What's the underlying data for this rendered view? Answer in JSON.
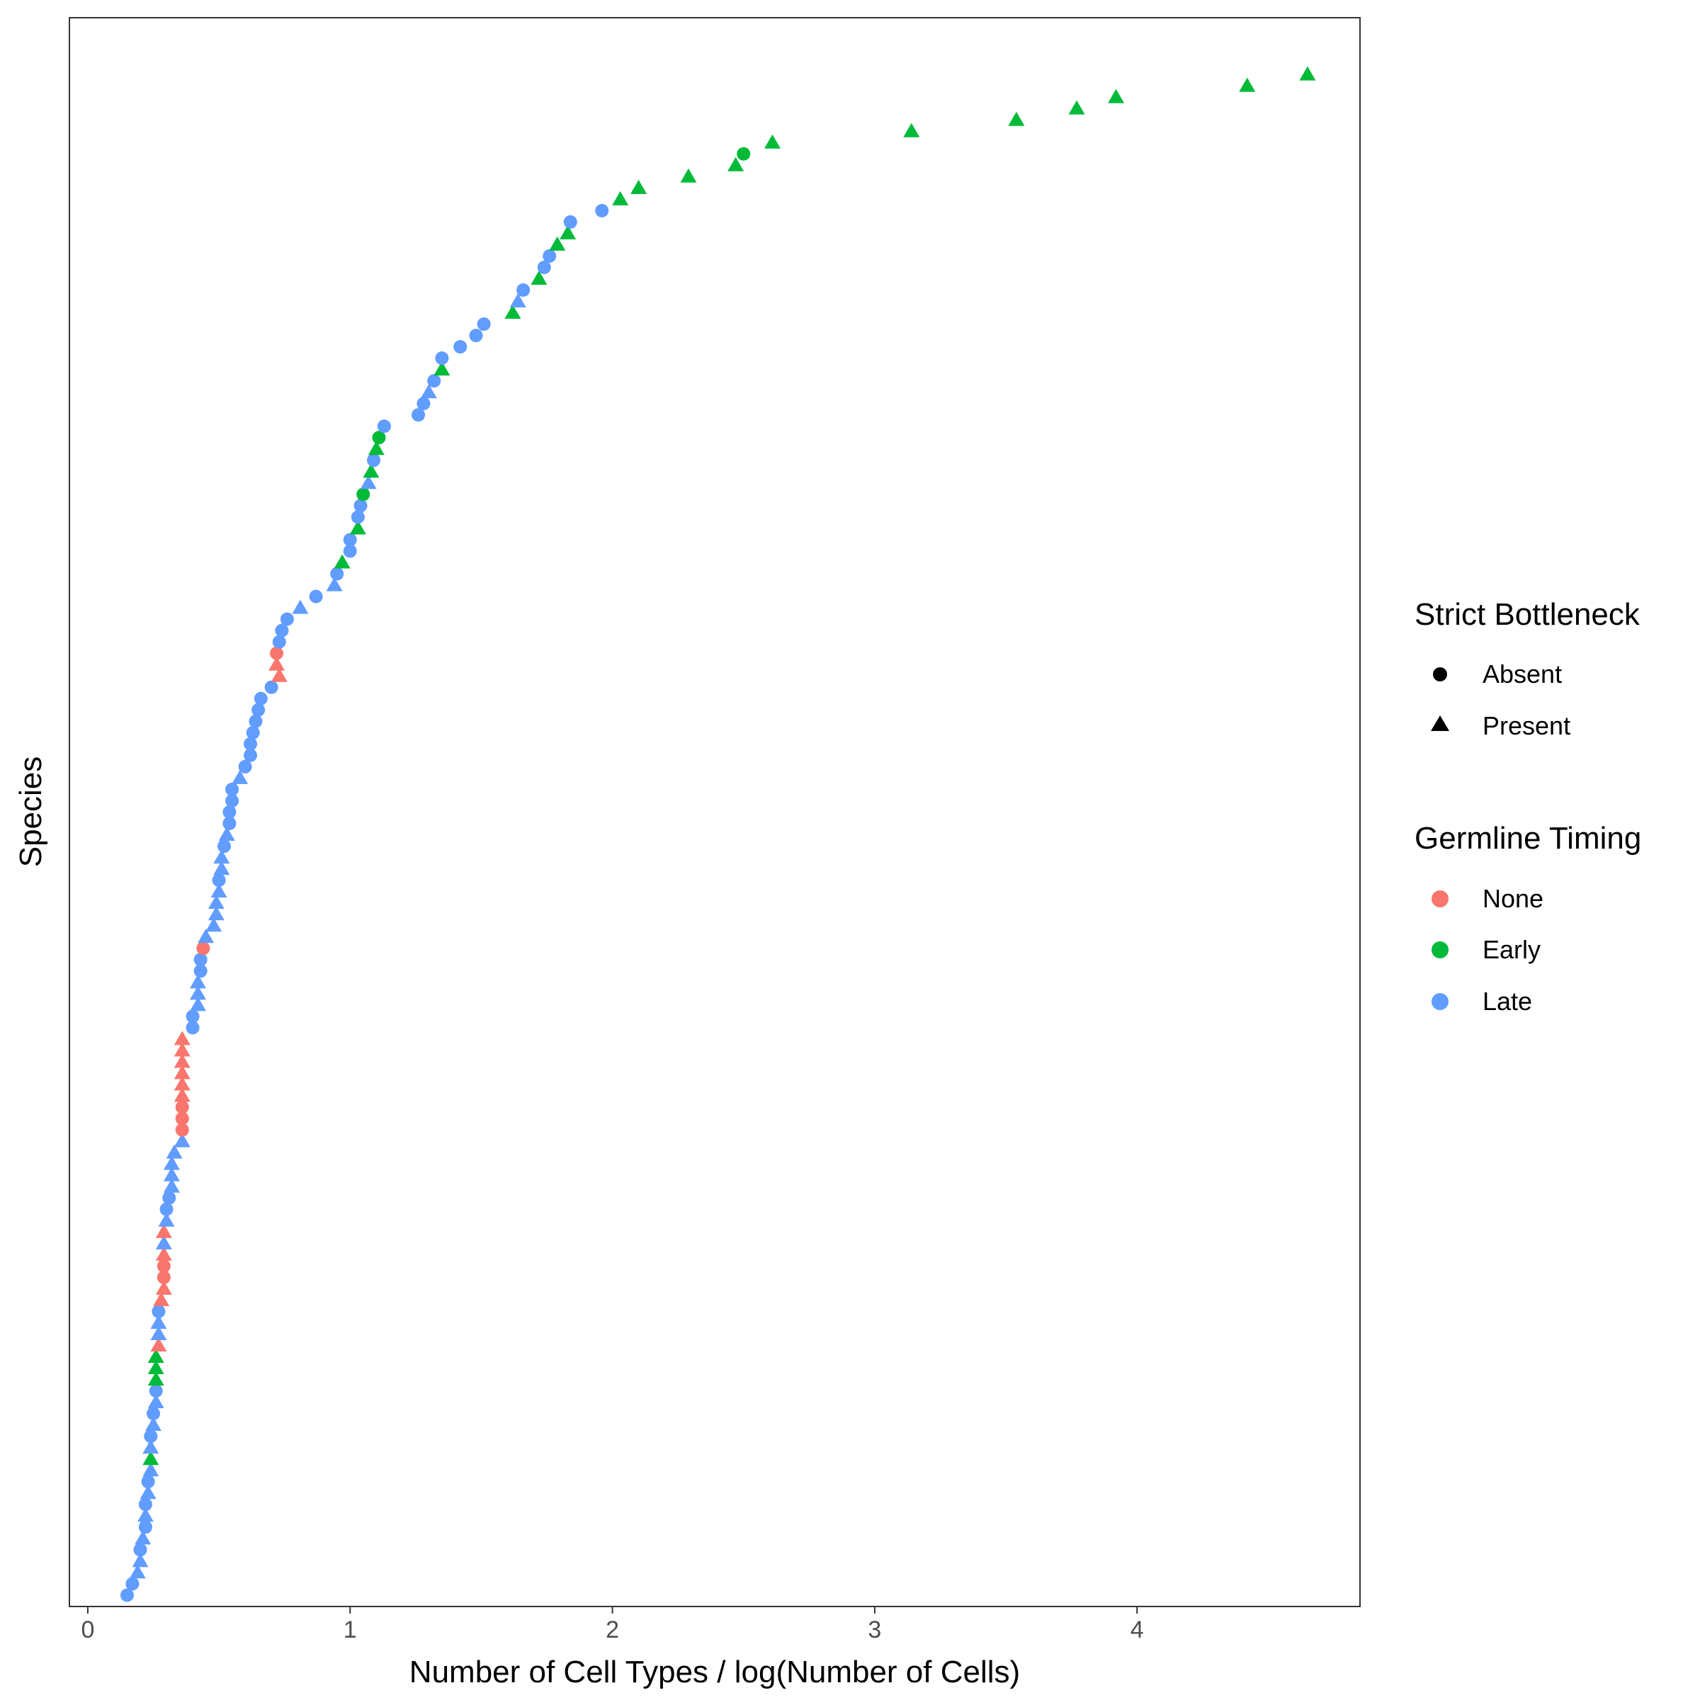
{
  "chart_data": {
    "type": "scatter",
    "xlabel": "Number of Cell Types / log(Number of Cells)",
    "ylabel": "Species",
    "xlim": [
      -0.07,
      4.85
    ],
    "ylim": [
      0,
      140
    ],
    "x_ticks": [
      "0",
      "1",
      "2",
      "3",
      "4"
    ],
    "grid": false,
    "legend_position": "right",
    "colors": {
      "None": "#F8766D",
      "Early": "#00BA38",
      "Late": "#619CFF"
    },
    "legends": [
      {
        "title": "Strict Bottleneck",
        "items": [
          {
            "label": "Absent",
            "shape": "circle"
          },
          {
            "label": "Present",
            "shape": "triangle"
          }
        ]
      },
      {
        "title": "Germline Timing",
        "items": [
          {
            "label": "None",
            "color": "#F8766D"
          },
          {
            "label": "Early",
            "color": "#00BA38"
          },
          {
            "label": "Late",
            "color": "#619CFF"
          }
        ]
      }
    ],
    "points": [
      {
        "x": 0.15,
        "rank": 1,
        "bottleneck": "Absent",
        "timing": "Late"
      },
      {
        "x": 0.17,
        "rank": 2,
        "bottleneck": "Absent",
        "timing": "Late"
      },
      {
        "x": 0.19,
        "rank": 3,
        "bottleneck": "Present",
        "timing": "Late"
      },
      {
        "x": 0.2,
        "rank": 4,
        "bottleneck": "Present",
        "timing": "Late"
      },
      {
        "x": 0.2,
        "rank": 5,
        "bottleneck": "Absent",
        "timing": "Late"
      },
      {
        "x": 0.21,
        "rank": 6,
        "bottleneck": "Present",
        "timing": "Late"
      },
      {
        "x": 0.22,
        "rank": 7,
        "bottleneck": "Absent",
        "timing": "Late"
      },
      {
        "x": 0.22,
        "rank": 8,
        "bottleneck": "Present",
        "timing": "Late"
      },
      {
        "x": 0.22,
        "rank": 9,
        "bottleneck": "Absent",
        "timing": "Late"
      },
      {
        "x": 0.23,
        "rank": 10,
        "bottleneck": "Present",
        "timing": "Late"
      },
      {
        "x": 0.23,
        "rank": 11,
        "bottleneck": "Absent",
        "timing": "Late"
      },
      {
        "x": 0.24,
        "rank": 12,
        "bottleneck": "Present",
        "timing": "Late"
      },
      {
        "x": 0.24,
        "rank": 13,
        "bottleneck": "Present",
        "timing": "Early"
      },
      {
        "x": 0.24,
        "rank": 14,
        "bottleneck": "Present",
        "timing": "Late"
      },
      {
        "x": 0.24,
        "rank": 15,
        "bottleneck": "Absent",
        "timing": "Late"
      },
      {
        "x": 0.25,
        "rank": 16,
        "bottleneck": "Present",
        "timing": "Late"
      },
      {
        "x": 0.25,
        "rank": 17,
        "bottleneck": "Absent",
        "timing": "Late"
      },
      {
        "x": 0.26,
        "rank": 18,
        "bottleneck": "Present",
        "timing": "Late"
      },
      {
        "x": 0.26,
        "rank": 19,
        "bottleneck": "Absent",
        "timing": "Late"
      },
      {
        "x": 0.26,
        "rank": 20,
        "bottleneck": "Present",
        "timing": "Early"
      },
      {
        "x": 0.26,
        "rank": 21,
        "bottleneck": "Present",
        "timing": "Early"
      },
      {
        "x": 0.26,
        "rank": 22,
        "bottleneck": "Present",
        "timing": "Early"
      },
      {
        "x": 0.27,
        "rank": 23,
        "bottleneck": "Present",
        "timing": "None"
      },
      {
        "x": 0.27,
        "rank": 24,
        "bottleneck": "Present",
        "timing": "Late"
      },
      {
        "x": 0.27,
        "rank": 25,
        "bottleneck": "Present",
        "timing": "Late"
      },
      {
        "x": 0.27,
        "rank": 26,
        "bottleneck": "Absent",
        "timing": "Late"
      },
      {
        "x": 0.28,
        "rank": 27,
        "bottleneck": "Present",
        "timing": "None"
      },
      {
        "x": 0.29,
        "rank": 28,
        "bottleneck": "Present",
        "timing": "None"
      },
      {
        "x": 0.29,
        "rank": 29,
        "bottleneck": "Absent",
        "timing": "None"
      },
      {
        "x": 0.29,
        "rank": 30,
        "bottleneck": "Absent",
        "timing": "None"
      },
      {
        "x": 0.29,
        "rank": 31,
        "bottleneck": "Present",
        "timing": "None"
      },
      {
        "x": 0.29,
        "rank": 32,
        "bottleneck": "Present",
        "timing": "Late"
      },
      {
        "x": 0.29,
        "rank": 33,
        "bottleneck": "Present",
        "timing": "None"
      },
      {
        "x": 0.3,
        "rank": 34,
        "bottleneck": "Present",
        "timing": "Late"
      },
      {
        "x": 0.3,
        "rank": 35,
        "bottleneck": "Absent",
        "timing": "Late"
      },
      {
        "x": 0.31,
        "rank": 36,
        "bottleneck": "Absent",
        "timing": "Late"
      },
      {
        "x": 0.32,
        "rank": 37,
        "bottleneck": "Present",
        "timing": "Late"
      },
      {
        "x": 0.32,
        "rank": 38,
        "bottleneck": "Present",
        "timing": "Late"
      },
      {
        "x": 0.32,
        "rank": 39,
        "bottleneck": "Present",
        "timing": "Late"
      },
      {
        "x": 0.33,
        "rank": 40,
        "bottleneck": "Present",
        "timing": "Late"
      },
      {
        "x": 0.36,
        "rank": 41,
        "bottleneck": "Present",
        "timing": "Late"
      },
      {
        "x": 0.36,
        "rank": 42,
        "bottleneck": "Absent",
        "timing": "None"
      },
      {
        "x": 0.36,
        "rank": 43,
        "bottleneck": "Absent",
        "timing": "None"
      },
      {
        "x": 0.36,
        "rank": 44,
        "bottleneck": "Absent",
        "timing": "None"
      },
      {
        "x": 0.36,
        "rank": 45,
        "bottleneck": "Present",
        "timing": "None"
      },
      {
        "x": 0.36,
        "rank": 46,
        "bottleneck": "Present",
        "timing": "None"
      },
      {
        "x": 0.36,
        "rank": 47,
        "bottleneck": "Present",
        "timing": "None"
      },
      {
        "x": 0.36,
        "rank": 48,
        "bottleneck": "Present",
        "timing": "None"
      },
      {
        "x": 0.36,
        "rank": 49,
        "bottleneck": "Present",
        "timing": "None"
      },
      {
        "x": 0.36,
        "rank": 50,
        "bottleneck": "Present",
        "timing": "None"
      },
      {
        "x": 0.4,
        "rank": 51,
        "bottleneck": "Absent",
        "timing": "Late"
      },
      {
        "x": 0.4,
        "rank": 52,
        "bottleneck": "Absent",
        "timing": "Late"
      },
      {
        "x": 0.42,
        "rank": 53,
        "bottleneck": "Present",
        "timing": "Late"
      },
      {
        "x": 0.42,
        "rank": 54,
        "bottleneck": "Present",
        "timing": "Late"
      },
      {
        "x": 0.42,
        "rank": 55,
        "bottleneck": "Present",
        "timing": "Late"
      },
      {
        "x": 0.43,
        "rank": 56,
        "bottleneck": "Absent",
        "timing": "Late"
      },
      {
        "x": 0.43,
        "rank": 57,
        "bottleneck": "Absent",
        "timing": "Late"
      },
      {
        "x": 0.44,
        "rank": 58,
        "bottleneck": "Absent",
        "timing": "None"
      },
      {
        "x": 0.45,
        "rank": 59,
        "bottleneck": "Present",
        "timing": "Late"
      },
      {
        "x": 0.48,
        "rank": 60,
        "bottleneck": "Present",
        "timing": "Late"
      },
      {
        "x": 0.49,
        "rank": 61,
        "bottleneck": "Present",
        "timing": "Late"
      },
      {
        "x": 0.49,
        "rank": 62,
        "bottleneck": "Present",
        "timing": "Late"
      },
      {
        "x": 0.5,
        "rank": 63,
        "bottleneck": "Present",
        "timing": "Late"
      },
      {
        "x": 0.5,
        "rank": 64,
        "bottleneck": "Absent",
        "timing": "Late"
      },
      {
        "x": 0.51,
        "rank": 65,
        "bottleneck": "Present",
        "timing": "Late"
      },
      {
        "x": 0.51,
        "rank": 66,
        "bottleneck": "Present",
        "timing": "Late"
      },
      {
        "x": 0.52,
        "rank": 67,
        "bottleneck": "Absent",
        "timing": "Late"
      },
      {
        "x": 0.53,
        "rank": 68,
        "bottleneck": "Present",
        "timing": "Late"
      },
      {
        "x": 0.54,
        "rank": 69,
        "bottleneck": "Absent",
        "timing": "Late"
      },
      {
        "x": 0.54,
        "rank": 70,
        "bottleneck": "Absent",
        "timing": "Late"
      },
      {
        "x": 0.55,
        "rank": 71,
        "bottleneck": "Absent",
        "timing": "Late"
      },
      {
        "x": 0.55,
        "rank": 72,
        "bottleneck": "Absent",
        "timing": "Late"
      },
      {
        "x": 0.58,
        "rank": 73,
        "bottleneck": "Present",
        "timing": "Late"
      },
      {
        "x": 0.6,
        "rank": 74,
        "bottleneck": "Absent",
        "timing": "Late"
      },
      {
        "x": 0.62,
        "rank": 75,
        "bottleneck": "Absent",
        "timing": "Late"
      },
      {
        "x": 0.62,
        "rank": 76,
        "bottleneck": "Absent",
        "timing": "Late"
      },
      {
        "x": 0.63,
        "rank": 77,
        "bottleneck": "Absent",
        "timing": "Late"
      },
      {
        "x": 0.64,
        "rank": 78,
        "bottleneck": "Absent",
        "timing": "Late"
      },
      {
        "x": 0.65,
        "rank": 79,
        "bottleneck": "Absent",
        "timing": "Late"
      },
      {
        "x": 0.66,
        "rank": 80,
        "bottleneck": "Absent",
        "timing": "Late"
      },
      {
        "x": 0.7,
        "rank": 81,
        "bottleneck": "Absent",
        "timing": "Late"
      },
      {
        "x": 0.73,
        "rank": 82,
        "bottleneck": "Present",
        "timing": "None"
      },
      {
        "x": 0.72,
        "rank": 83,
        "bottleneck": "Present",
        "timing": "None"
      },
      {
        "x": 0.72,
        "rank": 84,
        "bottleneck": "Absent",
        "timing": "None"
      },
      {
        "x": 0.73,
        "rank": 85,
        "bottleneck": "Absent",
        "timing": "Late"
      },
      {
        "x": 0.74,
        "rank": 86,
        "bottleneck": "Absent",
        "timing": "Late"
      },
      {
        "x": 0.76,
        "rank": 87,
        "bottleneck": "Absent",
        "timing": "Late"
      },
      {
        "x": 0.81,
        "rank": 88,
        "bottleneck": "Present",
        "timing": "Late"
      },
      {
        "x": 0.87,
        "rank": 89,
        "bottleneck": "Absent",
        "timing": "Late"
      },
      {
        "x": 0.94,
        "rank": 90,
        "bottleneck": "Present",
        "timing": "Late"
      },
      {
        "x": 0.95,
        "rank": 91,
        "bottleneck": "Absent",
        "timing": "Late"
      },
      {
        "x": 0.97,
        "rank": 92,
        "bottleneck": "Present",
        "timing": "Early"
      },
      {
        "x": 1.0,
        "rank": 93,
        "bottleneck": "Absent",
        "timing": "Late"
      },
      {
        "x": 1.0,
        "rank": 94,
        "bottleneck": "Absent",
        "timing": "Late"
      },
      {
        "x": 1.03,
        "rank": 95,
        "bottleneck": "Present",
        "timing": "Early"
      },
      {
        "x": 1.03,
        "rank": 96,
        "bottleneck": "Absent",
        "timing": "Late"
      },
      {
        "x": 1.04,
        "rank": 97,
        "bottleneck": "Absent",
        "timing": "Late"
      },
      {
        "x": 1.05,
        "rank": 98,
        "bottleneck": "Absent",
        "timing": "Early"
      },
      {
        "x": 1.07,
        "rank": 99,
        "bottleneck": "Present",
        "timing": "Late"
      },
      {
        "x": 1.08,
        "rank": 100,
        "bottleneck": "Present",
        "timing": "Early"
      },
      {
        "x": 1.09,
        "rank": 101,
        "bottleneck": "Absent",
        "timing": "Late"
      },
      {
        "x": 1.1,
        "rank": 102,
        "bottleneck": "Present",
        "timing": "Early"
      },
      {
        "x": 1.11,
        "rank": 103,
        "bottleneck": "Absent",
        "timing": "Early"
      },
      {
        "x": 1.13,
        "rank": 104,
        "bottleneck": "Absent",
        "timing": "Late"
      },
      {
        "x": 1.26,
        "rank": 105,
        "bottleneck": "Absent",
        "timing": "Late"
      },
      {
        "x": 1.28,
        "rank": 106,
        "bottleneck": "Absent",
        "timing": "Late"
      },
      {
        "x": 1.3,
        "rank": 107,
        "bottleneck": "Present",
        "timing": "Late"
      },
      {
        "x": 1.32,
        "rank": 108,
        "bottleneck": "Absent",
        "timing": "Late"
      },
      {
        "x": 1.35,
        "rank": 109,
        "bottleneck": "Present",
        "timing": "Early"
      },
      {
        "x": 1.35,
        "rank": 110,
        "bottleneck": "Absent",
        "timing": "Late"
      },
      {
        "x": 1.42,
        "rank": 111,
        "bottleneck": "Absent",
        "timing": "Late"
      },
      {
        "x": 1.48,
        "rank": 112,
        "bottleneck": "Absent",
        "timing": "Late"
      },
      {
        "x": 1.51,
        "rank": 113,
        "bottleneck": "Absent",
        "timing": "Late"
      },
      {
        "x": 1.62,
        "rank": 114,
        "bottleneck": "Present",
        "timing": "Early"
      },
      {
        "x": 1.64,
        "rank": 115,
        "bottleneck": "Present",
        "timing": "Late"
      },
      {
        "x": 1.66,
        "rank": 116,
        "bottleneck": "Absent",
        "timing": "Late"
      },
      {
        "x": 1.72,
        "rank": 117,
        "bottleneck": "Present",
        "timing": "Early"
      },
      {
        "x": 1.74,
        "rank": 118,
        "bottleneck": "Absent",
        "timing": "Late"
      },
      {
        "x": 1.76,
        "rank": 119,
        "bottleneck": "Absent",
        "timing": "Late"
      },
      {
        "x": 1.79,
        "rank": 120,
        "bottleneck": "Present",
        "timing": "Early"
      },
      {
        "x": 1.83,
        "rank": 121,
        "bottleneck": "Present",
        "timing": "Early"
      },
      {
        "x": 1.84,
        "rank": 122,
        "bottleneck": "Absent",
        "timing": "Late"
      },
      {
        "x": 1.96,
        "rank": 123,
        "bottleneck": "Absent",
        "timing": "Late"
      },
      {
        "x": 2.03,
        "rank": 124,
        "bottleneck": "Present",
        "timing": "Early"
      },
      {
        "x": 2.1,
        "rank": 125,
        "bottleneck": "Present",
        "timing": "Early"
      },
      {
        "x": 2.29,
        "rank": 126,
        "bottleneck": "Present",
        "timing": "Early"
      },
      {
        "x": 2.47,
        "rank": 127,
        "bottleneck": "Present",
        "timing": "Early"
      },
      {
        "x": 2.5,
        "rank": 128,
        "bottleneck": "Absent",
        "timing": "Early"
      },
      {
        "x": 2.61,
        "rank": 129,
        "bottleneck": "Present",
        "timing": "Early"
      },
      {
        "x": 3.14,
        "rank": 130,
        "bottleneck": "Present",
        "timing": "Early"
      },
      {
        "x": 3.54,
        "rank": 131,
        "bottleneck": "Present",
        "timing": "Early"
      },
      {
        "x": 3.77,
        "rank": 132,
        "bottleneck": "Present",
        "timing": "Early"
      },
      {
        "x": 3.92,
        "rank": 133,
        "bottleneck": "Present",
        "timing": "Early"
      },
      {
        "x": 4.42,
        "rank": 134,
        "bottleneck": "Present",
        "timing": "Early"
      },
      {
        "x": 4.65,
        "rank": 135,
        "bottleneck": "Present",
        "timing": "Early"
      }
    ]
  }
}
